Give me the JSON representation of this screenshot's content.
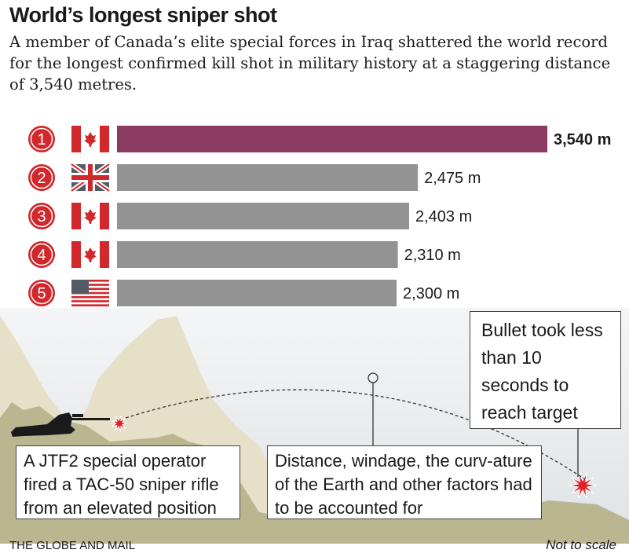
{
  "header": {
    "title": "World’s longest sniper shot",
    "subtitle": "A member of Canada’s elite special forces in Iraq shattered the world record for the longest confirmed kill shot in military history at a staggering distance of 3,540 metres."
  },
  "chart_data": {
    "type": "bar",
    "orientation": "horizontal",
    "categories": [
      "1",
      "2",
      "3",
      "4",
      "5"
    ],
    "flags": [
      "canada",
      "united-kingdom",
      "canada",
      "canada",
      "united-states"
    ],
    "values": [
      3540,
      2475,
      2403,
      2310,
      2300
    ],
    "labels": [
      "3,540 m",
      "2,475 m",
      "2,403 m",
      "2,310 m",
      "2,300 m"
    ],
    "unit": "m",
    "colors": {
      "highlight": "#8b3a62",
      "default": "#939393",
      "rank_circle": "#d0282c"
    }
  },
  "scene": {
    "callout_left": "A JTF2 special operator fired a TAC-50 sniper rifle from an elevated position",
    "callout_middle": "Distance, windage, the curv-ature of the Earth and other factors had to be accounted for",
    "callout_right": "Bullet took less than 10 seconds to reach target",
    "colors": {
      "mountain": "#e6e0c8",
      "ground": "#bab690",
      "burst": "#e0202a"
    }
  },
  "footer": {
    "source": "THE GLOBE AND MAIL",
    "note": "Not to scale"
  }
}
